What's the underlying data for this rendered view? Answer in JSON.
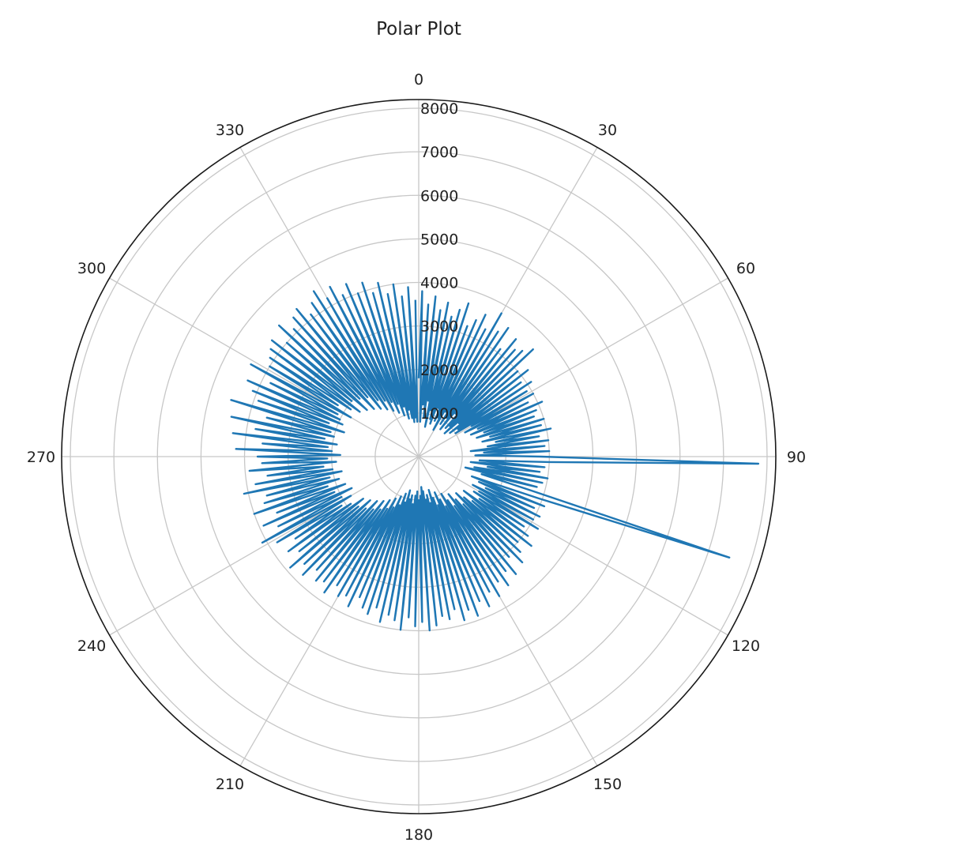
{
  "chart_data": {
    "type": "line",
    "projection": "polar",
    "title": "Polar Plot",
    "theta_zero_location": "N",
    "theta_direction": "clockwise",
    "theta_ticks": [
      "0",
      "30",
      "60",
      "90",
      "120",
      "150",
      "180",
      "210",
      "240",
      "270",
      "300",
      "330"
    ],
    "r_ticks": [
      "1000",
      "2000",
      "3000",
      "4000",
      "5000",
      "6000",
      "7000",
      "8000"
    ],
    "rlim": [
      0,
      8200
    ],
    "grid": true,
    "series": [
      {
        "color": "#1f77b4",
        "theta_deg": [
          0,
          1.2,
          2.4,
          3.6,
          4.8,
          6.0,
          7.2,
          8.4,
          9.6,
          10.8,
          12.0,
          13.2,
          14.4,
          15.6,
          16.8,
          18.0,
          19.2,
          20.4,
          21.6,
          22.8,
          24.0,
          25.2,
          26.4,
          27.6,
          28.8,
          30.0,
          31.2,
          32.4,
          33.6,
          34.8,
          36.0,
          37.2,
          38.4,
          39.6,
          40.8,
          42.0,
          43.2,
          44.4,
          45.6,
          46.8,
          48.0,
          49.2,
          50.4,
          51.6,
          52.8,
          54.0,
          55.2,
          56.4,
          57.6,
          58.8,
          60.0,
          61.2,
          62.4,
          63.6,
          64.8,
          66.0,
          67.2,
          68.4,
          69.6,
          70.8,
          72.0,
          73.2,
          74.4,
          75.6,
          76.8,
          78.0,
          79.2,
          80.4,
          81.6,
          82.8,
          84.0,
          85.2,
          86.4,
          87.6,
          88.8,
          90.0,
          91.2,
          92.4,
          93.6,
          94.8,
          96.0,
          97.2,
          98.4,
          99.6,
          100.8,
          102.0,
          103.2,
          104.4,
          105.6,
          106.8,
          108.0,
          109.2,
          110.4,
          111.6,
          112.8,
          114.0,
          115.2,
          116.4,
          117.6,
          118.8,
          120.0,
          121.2,
          122.4,
          123.6,
          124.8,
          126.0,
          127.2,
          128.4,
          129.6,
          130.8,
          132.0,
          133.2,
          134.4,
          135.6,
          136.8,
          138.0,
          139.2,
          140.4,
          141.6,
          142.8,
          144.0,
          145.2,
          146.4,
          147.6,
          148.8,
          150.0,
          151.2,
          152.4,
          153.6,
          154.8,
          156.0,
          157.2,
          158.4,
          159.6,
          160.8,
          162.0,
          163.2,
          164.4,
          165.6,
          166.8,
          168.0,
          169.2,
          170.4,
          171.6,
          172.8,
          174.0,
          175.2,
          176.4,
          177.6,
          178.8,
          180.0,
          181.2,
          182.4,
          183.6,
          184.8,
          186.0,
          187.2,
          188.4,
          189.6,
          190.8,
          192.0,
          193.2,
          194.4,
          195.6,
          196.8,
          198.0,
          199.2,
          200.4,
          201.6,
          202.8,
          204.0,
          205.2,
          206.4,
          207.6,
          208.8,
          210.0,
          211.2,
          212.4,
          213.6,
          214.8,
          216.0,
          217.2,
          218.4,
          219.6,
          220.8,
          222.0,
          223.2,
          224.4,
          225.6,
          226.8,
          228.0,
          229.2,
          230.4,
          231.6,
          232.8,
          234.0,
          235.2,
          236.4,
          237.6,
          238.8,
          240.0,
          241.2,
          242.4,
          243.6,
          244.8,
          246.0,
          247.2,
          248.4,
          249.6,
          250.8,
          252.0,
          253.2,
          254.4,
          255.6,
          256.8,
          258.0,
          259.2,
          260.4,
          261.6,
          262.8,
          264.0,
          265.2,
          266.4,
          267.6,
          268.8,
          270.0,
          271.2,
          272.4,
          273.6,
          274.8,
          276.0,
          277.2,
          278.4,
          279.6,
          280.8,
          282.0,
          283.2,
          284.4,
          285.6,
          286.8,
          288.0,
          289.2,
          290.4,
          291.6,
          292.8,
          294.0,
          295.2,
          296.4,
          297.6,
          298.8,
          300.0,
          301.2,
          302.4,
          303.6,
          304.8,
          306.0,
          307.2,
          308.4,
          309.6,
          310.8,
          312.0,
          313.2,
          314.4,
          315.6,
          316.8,
          318.0,
          319.2,
          320.4,
          321.6,
          322.8,
          324.0,
          325.2,
          326.4,
          327.6,
          328.8,
          330.0,
          331.2,
          332.4,
          333.6,
          334.8,
          336.0,
          337.2,
          338.4,
          339.6,
          340.8,
          342.0,
          343.2,
          344.4,
          345.6,
          346.8,
          348.0,
          349.2,
          350.4,
          351.6,
          352.8,
          354.0,
          355.2,
          356.4,
          357.6,
          358.8
        ],
        "r": [
          1800,
          3800,
          800,
          3500,
          1200,
          3700,
          900,
          3400,
          1300,
          3600,
          700,
          3300,
          1100,
          3500,
          900,
          3700,
          800,
          3200,
          1200,
          3400,
          900,
          3600,
          1000,
          3300,
          700,
          3800,
          1200,
          3400,
          900,
          3600,
          1100,
          3100,
          800,
          3500,
          1300,
          3300,
          900,
          3400,
          1000,
          3600,
          800,
          3000,
          1200,
          3200,
          900,
          2900,
          1100,
          3100,
          1000,
          2900,
          1400,
          3000,
          1200,
          2800,
          1500,
          3100,
          1300,
          2900,
          1600,
          2800,
          1400,
          3000,
          1700,
          2900,
          1500,
          3100,
          1800,
          2800,
          1600,
          3000,
          1200,
          2900,
          1500,
          3000,
          1300,
          2800,
          7800,
          3000,
          1400,
          2900,
          1200,
          2800,
          1600,
          3000,
          1300,
          2900,
          1100,
          2800,
          1500,
          2700,
          7500,
          2900,
          1300,
          3100,
          1500,
          2900,
          1700,
          3100,
          1400,
          3000,
          1600,
          3200,
          1500,
          2900,
          1700,
          3100,
          1300,
          3300,
          1600,
          3000,
          1400,
          3200,
          1200,
          3400,
          1500,
          3100,
          1300,
          3500,
          1100,
          3300,
          1400,
          3600,
          1200,
          3400,
          1000,
          3700,
          1300,
          3500,
          1100,
          3800,
          900,
          3600,
          1200,
          3900,
          1000,
          3700,
          800,
          3900,
          1100,
          3600,
          900,
          3800,
          1000,
          3700,
          800,
          3900,
          700,
          4000,
          900,
          3800,
          1000,
          3900,
          800,
          3700,
          900,
          4000,
          1100,
          3800,
          900,
          3700,
          1000,
          3900,
          800,
          3600,
          1100,
          3800,
          900,
          3700,
          1200,
          3500,
          1000,
          3800,
          1300,
          3600,
          1100,
          3700,
          1400,
          3500,
          1200,
          3800,
          1500,
          3600,
          1300,
          3700,
          1600,
          3500,
          1400,
          3800,
          1700,
          3600,
          1500,
          3900,
          1800,
          3500,
          1600,
          3700,
          1900,
          3400,
          2100,
          3800,
          1800,
          4100,
          2000,
          3600,
          1700,
          3900,
          2100,
          3500,
          1800,
          4000,
          2200,
          3700,
          1900,
          3600,
          2100,
          4100,
          1800,
          3800,
          2000,
          3500,
          2200,
          3900,
          1900,
          3600,
          2100,
          3700,
          1800,
          4200,
          2000,
          3600,
          2100,
          4300,
          1900,
          3800,
          2200,
          4400,
          2000,
          3600,
          2100,
          4500,
          1800,
          3900,
          2200,
          4100,
          1900,
          4300,
          2000,
          3800,
          2100,
          4400,
          1800,
          4000,
          2200,
          4100,
          1900,
          4200,
          1700,
          4300,
          2000,
          4000,
          1600,
          4400,
          1900,
          4100,
          1500,
          4300,
          1800,
          4400,
          1400,
          4100,
          1600,
          4300,
          1300,
          4500,
          1500,
          4200,
          1200,
          4400,
          1400,
          4100,
          1100,
          4300,
          1300,
          4000,
          1000,
          4200,
          1200,
          3900,
          900,
          4100,
          1100,
          3800,
          900,
          4000,
          800,
          3700,
          900,
          3900,
          800,
          3600
        ]
      }
    ]
  }
}
